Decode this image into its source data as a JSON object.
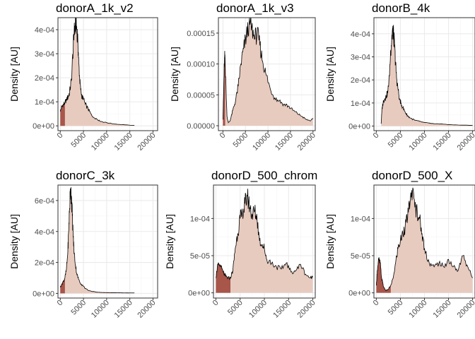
{
  "chart_data": [
    {
      "type": "area",
      "title": "donorA_1k_v2",
      "ylabel": "Density [AU]",
      "xlim": [
        -500,
        21000
      ],
      "ylim": [
        -2e-05,
        0.00045
      ],
      "xticks": [
        0,
        5000,
        10000,
        15000,
        20000
      ],
      "xtick_labels": [
        "0",
        "5000",
        "10000",
        "15000",
        "20000"
      ],
      "yticks": [
        0,
        0.0001,
        0.0002,
        0.0003,
        0.0004
      ],
      "ytick_labels": [
        "0e+00",
        "1e-04",
        "2e-04",
        "3e-04",
        "4e-04"
      ],
      "threshold": 1000,
      "x": [
        0,
        300,
        700,
        1000,
        1300,
        1700,
        2000,
        2400,
        2800,
        3000,
        3200,
        3400,
        3600,
        3800,
        4000,
        4200,
        4400,
        4700,
        5000,
        5400,
        6000,
        6600,
        7200,
        7800,
        8500,
        9500,
        11000,
        12500,
        14000,
        16000
      ],
      "y": [
        6e-05,
        8e-05,
        9e-05,
        9.5e-05,
        0.00011,
        0.00012,
        0.00014,
        0.00019,
        0.00033,
        0.00039,
        0.00041,
        0.00042,
        0.0004,
        0.00035,
        0.00026,
        0.00019,
        0.00015,
        0.00012,
        0.00011,
        9e-05,
        7e-05,
        5e-05,
        3.5e-05,
        3e-05,
        2e-05,
        1.5e-05,
        1e-05,
        6e-06,
        4e-06,
        2e-06
      ]
    },
    {
      "type": "area",
      "title": "donorA_1k_v3",
      "ylabel": "Density [AU]",
      "xlim": [
        -1000,
        20500
      ],
      "ylim": [
        -8e-06,
        0.000175
      ],
      "xticks": [
        0,
        5000,
        10000,
        15000,
        20000
      ],
      "xtick_labels": [
        "0",
        "5000",
        "10000",
        "15000",
        "20000"
      ],
      "yticks": [
        0,
        5e-05,
        0.0001,
        0.00015
      ],
      "ytick_labels": [
        "0.00000",
        "0.00005",
        "0.00010",
        "0.00015"
      ],
      "threshold": 500,
      "x": [
        0,
        150,
        300,
        450,
        600,
        900,
        1200,
        1600,
        2200,
        2800,
        3400,
        4000,
        4600,
        5200,
        5800,
        6400,
        7000,
        7600,
        8200,
        8800,
        9500,
        10500,
        11500,
        12500,
        13500,
        14500,
        15500,
        16500,
        17500,
        18500,
        19500,
        20000
      ],
      "y": [
        1e-05,
        5e-05,
        0.0001,
        0.000115,
        8e-05,
        1.5e-05,
        5e-06,
        8e-06,
        2.5e-05,
        4e-05,
        6.5e-05,
        0.0001,
        0.000125,
        0.000145,
        0.000165,
        0.00016,
        0.00014,
        0.00015,
        0.00013,
        0.000105,
        8.5e-05,
        6e-05,
        4.5e-05,
        4e-05,
        3.5e-05,
        3.2e-05,
        2.5e-05,
        2e-05,
        1.5e-05,
        1e-05,
        8e-06,
        1.2e-05
      ]
    },
    {
      "type": "area",
      "title": "donorB_4k",
      "ylabel": "Density [AU]",
      "xlim": [
        -500,
        20500
      ],
      "ylim": [
        -2e-05,
        0.00047
      ],
      "xticks": [
        0,
        5000,
        10000,
        15000,
        20000
      ],
      "xtick_labels": [
        "0",
        "5000",
        "10000",
        "15000",
        "20000"
      ],
      "yticks": [
        0,
        0.0001,
        0.0002,
        0.0003,
        0.0004
      ],
      "ytick_labels": [
        "0e+00",
        "1e-04",
        "2e-04",
        "3e-04",
        "4e-04"
      ],
      "threshold": 1000,
      "x": [
        1000,
        1200,
        1500,
        1800,
        2100,
        2400,
        2700,
        3000,
        3200,
        3400,
        3600,
        3800,
        4000,
        4200,
        4500,
        4800,
        5100,
        5500,
        6000,
        6500,
        7000,
        8000,
        9000,
        10000,
        12000,
        14000,
        16000,
        18000,
        20000
      ],
      "y": [
        1e-05,
        8e-05,
        0.00011,
        0.00012,
        0.00013,
        0.00015,
        0.00022,
        0.00033,
        0.00038,
        0.00042,
        0.00039,
        0.00034,
        0.00027,
        0.00021,
        0.00016,
        0.00012,
        0.0001,
        8e-05,
        6e-05,
        4.5e-05,
        3.5e-05,
        2.5e-05,
        2e-05,
        1.5e-05,
        1e-05,
        8e-06,
        5e-06,
        4e-06,
        3e-06
      ]
    },
    {
      "type": "area",
      "title": "donorC_3k",
      "ylabel": "Density [AU]",
      "xlim": [
        -500,
        21000
      ],
      "ylim": [
        -3e-05,
        0.0007
      ],
      "xticks": [
        0,
        5000,
        10000,
        15000,
        20000
      ],
      "xtick_labels": [
        "0",
        "5000",
        "10000",
        "15000",
        "20000"
      ],
      "yticks": [
        0,
        0.0002,
        0.0004,
        0.0006
      ],
      "ytick_labels": [
        "0e+00",
        "2e-04",
        "4e-04",
        "6e-04"
      ],
      "threshold": 1000,
      "x": [
        0,
        300,
        700,
        1000,
        1300,
        1600,
        1800,
        2000,
        2200,
        2400,
        2600,
        2800,
        3000,
        3300,
        3600,
        4000,
        4500,
        5000,
        5500,
        6000,
        7000,
        8000,
        9000,
        10000,
        12000,
        14000,
        16000
      ],
      "y": [
        4e-05,
        6e-05,
        8e-05,
        0.0001,
        0.00015,
        0.00025,
        0.0004,
        0.00055,
        0.00067,
        0.00063,
        0.0005,
        0.00036,
        0.00026,
        0.00018,
        0.00012,
        9e-05,
        6e-05,
        4.5e-05,
        3e-05,
        2e-05,
        1.2e-05,
        8e-06,
        6e-06,
        5e-06,
        4e-06,
        3e-06,
        3e-06
      ]
    },
    {
      "type": "area",
      "title": "donorD_500_chrom",
      "ylabel": "Density [AU]",
      "xlim": [
        -500,
        20500
      ],
      "ylim": [
        -7e-06,
        0.000145
      ],
      "xticks": [
        0,
        5000,
        10000,
        15000,
        20000
      ],
      "xtick_labels": [
        "0",
        "5000",
        "10000",
        "15000",
        "20000"
      ],
      "yticks": [
        0,
        5e-05,
        0.0001
      ],
      "ytick_labels": [
        "0e+00",
        "5e-05",
        "1e-04"
      ],
      "threshold": 3000,
      "x": [
        0,
        300,
        700,
        1000,
        1500,
        2000,
        2500,
        3000,
        3500,
        4000,
        4500,
        5000,
        5500,
        6000,
        6500,
        7000,
        7500,
        8000,
        8500,
        9000,
        9500,
        10000,
        10500,
        11500,
        12500,
        13500,
        14500,
        15500,
        16500,
        17500,
        18500,
        19500,
        20000
      ],
      "y": [
        2e-05,
        3.5e-05,
        3.8e-05,
        3.5e-05,
        2.8e-05,
        2.2e-05,
        2e-05,
        2e-05,
        3e-05,
        6e-05,
        8e-05,
        0.0001,
        0.000105,
        0.00012,
        0.00013,
        0.000115,
        0.000105,
        0.00011,
        0.0001,
        7e-05,
        6.5e-05,
        6e-05,
        4.5e-05,
        4e-05,
        3.5e-05,
        3.2e-05,
        4e-05,
        2.8e-05,
        3e-05,
        3.8e-05,
        2.5e-05,
        2e-05,
        2.2e-05
      ]
    },
    {
      "type": "area",
      "title": "donorD_500_X",
      "ylabel": "Density [AU]",
      "xlim": [
        -500,
        20500
      ],
      "ylim": [
        -7e-06,
        0.000145
      ],
      "xticks": [
        0,
        5000,
        10000,
        15000,
        20000
      ],
      "xtick_labels": [
        "0",
        "5000",
        "10000",
        "15000",
        "20000"
      ],
      "yticks": [
        0,
        5e-05,
        0.0001
      ],
      "ytick_labels": [
        "0e+00",
        "5e-05",
        "1e-04"
      ],
      "threshold": 3000,
      "x": [
        0,
        200,
        500,
        800,
        1100,
        1500,
        2000,
        2500,
        3000,
        3500,
        4000,
        4500,
        5000,
        5500,
        6000,
        6500,
        7000,
        7500,
        8000,
        8500,
        9000,
        9500,
        10000,
        11000,
        12000,
        13000,
        14000,
        15000,
        16000,
        17000,
        18000,
        19000,
        20000
      ],
      "y": [
        1e-05,
        3e-05,
        4.5e-05,
        4e-05,
        2e-05,
        8e-06,
        3e-06,
        5e-06,
        1e-05,
        2e-05,
        4e-05,
        6e-05,
        7e-05,
        8e-05,
        9e-05,
        0.0001,
        0.00012,
        0.000135,
        0.000115,
        0.00011,
        0.0001,
        8e-05,
        6e-05,
        4e-05,
        3.5e-05,
        4e-05,
        3.5e-05,
        4.5e-05,
        3.5e-05,
        3e-05,
        5e-05,
        3.5e-05,
        2e-05
      ]
    }
  ],
  "colors": {
    "panel_background": "#ffffff",
    "grid_major": "#ebebeb",
    "grid_minor": "#f5f5f5",
    "panel_border": "#333333",
    "fill_main": "#e8cbbf",
    "fill_low": "#a8554a",
    "outline": "#000000",
    "tick_text": "#4d4d4d"
  }
}
